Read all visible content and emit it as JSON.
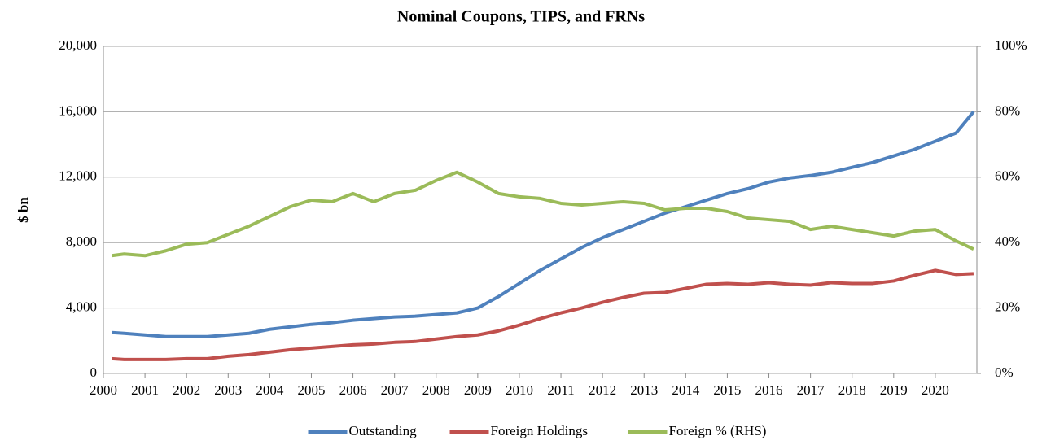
{
  "chart_data": {
    "type": "line",
    "title": "Nominal Coupons, TIPS, and FRNs",
    "ylabel": "$ bn",
    "x": [
      2000.2,
      2000.5,
      2001,
      2001.5,
      2002,
      2002.5,
      2003,
      2003.5,
      2004,
      2004.5,
      2005,
      2005.5,
      2006,
      2006.5,
      2007,
      2007.5,
      2008,
      2008.5,
      2009,
      2009.5,
      2010,
      2010.5,
      2011,
      2011.5,
      2012,
      2012.5,
      2013,
      2013.5,
      2014,
      2014.5,
      2015,
      2015.5,
      2016,
      2016.5,
      2017,
      2017.5,
      2018,
      2018.5,
      2019,
      2019.5,
      2020,
      2020.5,
      2020.92
    ],
    "series": [
      {
        "name": "Outstanding",
        "color": "#4f81bd",
        "values": [
          2500,
          2450,
          2350,
          2250,
          2250,
          2250,
          2350,
          2450,
          2700,
          2850,
          3000,
          3100,
          3250,
          3350,
          3450,
          3500,
          3600,
          3700,
          4000,
          4700,
          5500,
          6300,
          7000,
          7700,
          8300,
          8800,
          9300,
          9800,
          10200,
          10600,
          11000,
          11300,
          11700,
          11950,
          12100,
          12300,
          12600,
          12900,
          13300,
          13700,
          14200,
          14700,
          16000
        ]
      },
      {
        "name": "Foreign Holdings",
        "color": "#c0504d",
        "values": [
          900,
          850,
          850,
          850,
          900,
          900,
          1050,
          1150,
          1300,
          1450,
          1550,
          1650,
          1750,
          1800,
          1900,
          1950,
          2100,
          2250,
          2350,
          2600,
          2950,
          3350,
          3700,
          4000,
          4350,
          4650,
          4900,
          4950,
          5200,
          5450,
          5500,
          5450,
          5550,
          5450,
          5400,
          5550,
          5500,
          5500,
          5650,
          6000,
          6300,
          6050,
          6100
        ]
      },
      {
        "name": "Foreign % (RHS)",
        "color": "#9bbb59",
        "axis": "y2",
        "values": [
          36,
          36.5,
          36,
          37.5,
          39.5,
          40,
          42.5,
          45,
          48,
          51,
          53,
          52.5,
          55,
          52.5,
          55,
          56,
          59,
          61.5,
          58.5,
          55,
          54,
          53.5,
          52,
          51.5,
          52,
          52.5,
          52,
          50,
          50.5,
          50.5,
          49.5,
          47.5,
          47,
          46.5,
          44,
          45,
          44,
          43,
          42,
          43.5,
          44,
          40.5,
          38
        ]
      }
    ],
    "xlim": [
      2000,
      2021
    ],
    "xticks": [
      2000,
      2001,
      2002,
      2003,
      2004,
      2005,
      2006,
      2007,
      2008,
      2009,
      2010,
      2011,
      2012,
      2013,
      2014,
      2015,
      2016,
      2017,
      2018,
      2019,
      2020
    ],
    "ylim": [
      0,
      20000
    ],
    "yticks": [
      0,
      {
        "value": 4000,
        "label": "4,000"
      },
      {
        "value": 8000,
        "label": "8,000"
      },
      {
        "value": 12000,
        "label": "12,000"
      },
      {
        "value": 16000,
        "label": "16,000"
      },
      {
        "value": 20000,
        "label": "20,000"
      }
    ],
    "y2lim": [
      0,
      100
    ],
    "y2ticks": [
      {
        "value": 0,
        "label": "0%"
      },
      {
        "value": 20,
        "label": "20%"
      },
      {
        "value": 40,
        "label": "40%"
      },
      {
        "value": 60,
        "label": "60%"
      },
      {
        "value": 80,
        "label": "80%"
      },
      {
        "value": 100,
        "label": "100%"
      }
    ],
    "grid": true,
    "legend": "bottom"
  }
}
